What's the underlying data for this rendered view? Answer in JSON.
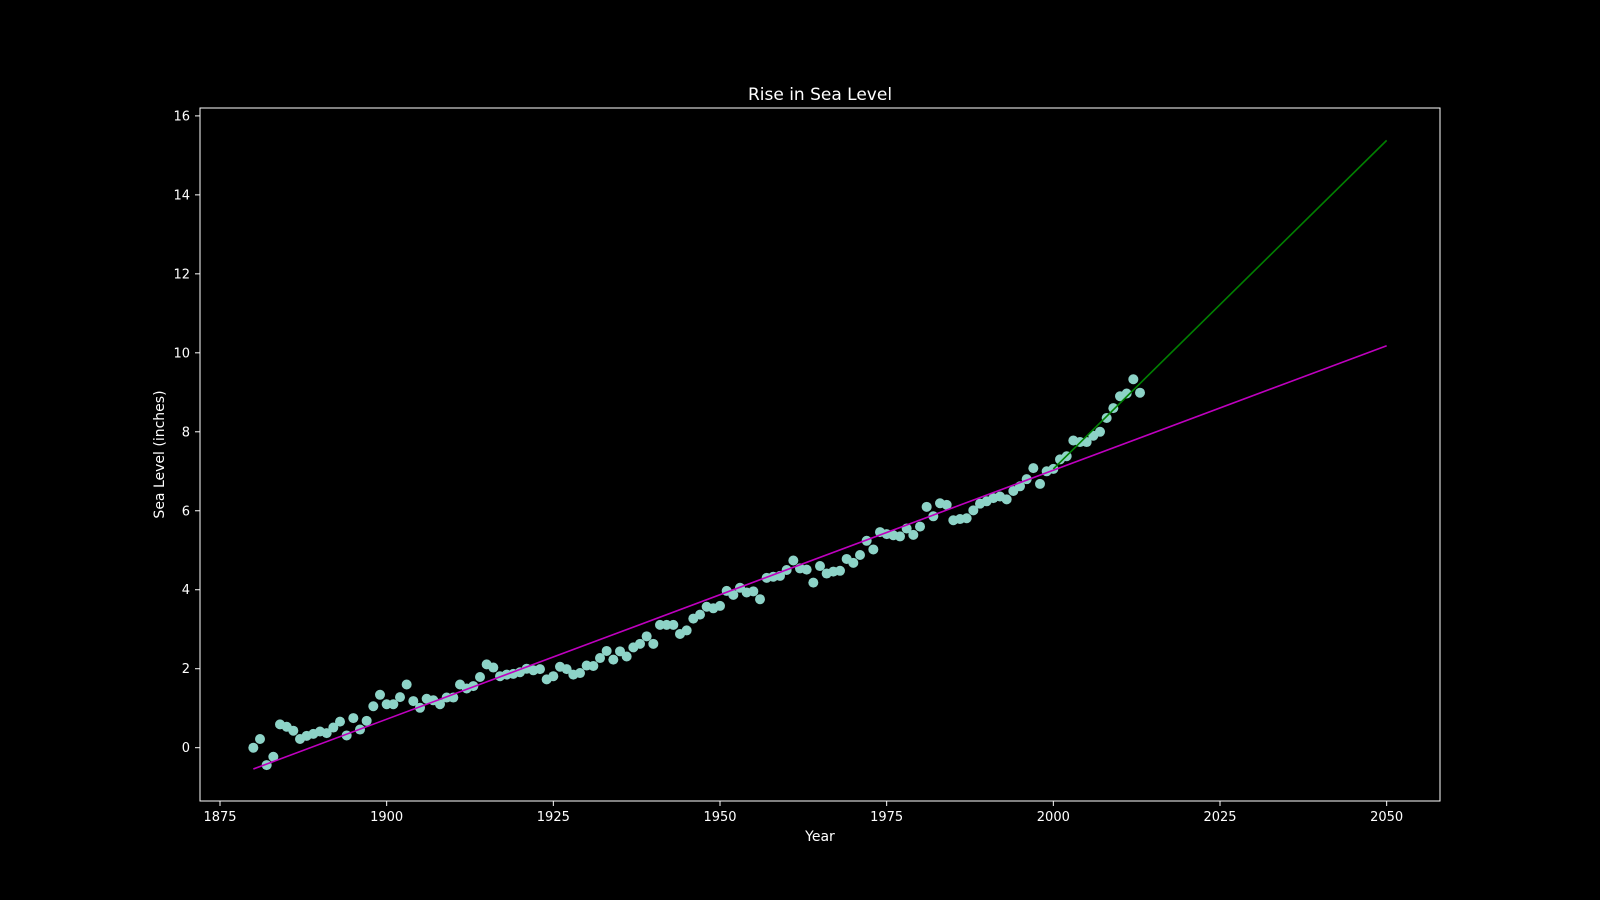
{
  "chart_data": {
    "type": "scatter",
    "title": "Rise in Sea Level",
    "xlabel": "Year",
    "ylabel": "Sea Level (inches)",
    "xlim": [
      1872,
      2058
    ],
    "ylim": [
      -1.35,
      16.2
    ],
    "xticks": [
      1875,
      1900,
      1925,
      1950,
      1975,
      2000,
      2025,
      2050
    ],
    "yticks": [
      0,
      2,
      4,
      6,
      8,
      10,
      12,
      14,
      16
    ],
    "grid": false,
    "legend": "none",
    "colors": {
      "background": "#000000",
      "axes": "#ffffff",
      "points": "#8dd3c7",
      "fit_all": "#bf00bf",
      "fit_recent": "#008000"
    },
    "series": [
      {
        "kind": "scatter",
        "x": [
          1880,
          1881,
          1882,
          1883,
          1884,
          1885,
          1886,
          1887,
          1888,
          1889,
          1890,
          1891,
          1892,
          1893,
          1894,
          1895,
          1896,
          1897,
          1898,
          1899,
          1900,
          1901,
          1902,
          1903,
          1904,
          1905,
          1906,
          1907,
          1908,
          1909,
          1910,
          1911,
          1912,
          1913,
          1914,
          1915,
          1916,
          1917,
          1918,
          1919,
          1920,
          1921,
          1922,
          1923,
          1924,
          1925,
          1926,
          1927,
          1928,
          1929,
          1930,
          1931,
          1932,
          1933,
          1934,
          1935,
          1936,
          1937,
          1938,
          1939,
          1940,
          1941,
          1942,
          1943,
          1944,
          1945,
          1946,
          1947,
          1948,
          1949,
          1950,
          1951,
          1952,
          1953,
          1954,
          1955,
          1956,
          1957,
          1958,
          1959,
          1960,
          1961,
          1962,
          1963,
          1964,
          1965,
          1966,
          1967,
          1968,
          1969,
          1970,
          1971,
          1972,
          1973,
          1974,
          1975,
          1976,
          1977,
          1978,
          1979,
          1980,
          1981,
          1982,
          1983,
          1984,
          1985,
          1986,
          1987,
          1988,
          1989,
          1990,
          1991,
          1992,
          1993,
          1994,
          1995,
          1996,
          1997,
          1998,
          1999,
          2000,
          2001,
          2002,
          2003,
          2004,
          2005,
          2006,
          2007,
          2008,
          2009,
          2010,
          2011,
          2012,
          2013
        ],
        "y": [
          0.0,
          0.22,
          -0.44,
          -0.23,
          0.59,
          0.53,
          0.43,
          0.22,
          0.3,
          0.35,
          0.41,
          0.37,
          0.51,
          0.66,
          0.31,
          0.75,
          0.46,
          0.68,
          1.05,
          1.34,
          1.1,
          1.1,
          1.28,
          1.6,
          1.18,
          1.01,
          1.24,
          1.2,
          1.1,
          1.27,
          1.27,
          1.6,
          1.5,
          1.56,
          1.79,
          2.11,
          2.03,
          1.81,
          1.85,
          1.87,
          1.91,
          2.0,
          1.96,
          1.99,
          1.73,
          1.81,
          2.05,
          1.99,
          1.85,
          1.89,
          2.08,
          2.07,
          2.27,
          2.45,
          2.23,
          2.44,
          2.31,
          2.54,
          2.63,
          2.82,
          2.63,
          3.11,
          3.11,
          3.11,
          2.88,
          2.97,
          3.27,
          3.37,
          3.57,
          3.53,
          3.59,
          3.97,
          3.87,
          4.05,
          3.93,
          3.96,
          3.76,
          4.3,
          4.33,
          4.35,
          4.5,
          4.74,
          4.54,
          4.51,
          4.18,
          4.6,
          4.41,
          4.46,
          4.48,
          4.78,
          4.68,
          4.88,
          5.24,
          5.02,
          5.46,
          5.41,
          5.38,
          5.35,
          5.55,
          5.39,
          5.6,
          6.1,
          5.86,
          6.19,
          6.15,
          5.76,
          5.79,
          5.81,
          6.01,
          6.18,
          6.24,
          6.32,
          6.36,
          6.29,
          6.5,
          6.62,
          6.8,
          7.08,
          6.68,
          7.0,
          7.06,
          7.3,
          7.38,
          7.78,
          7.74,
          7.74,
          7.9,
          8.0,
          8.35,
          8.6,
          8.9,
          8.97,
          9.33,
          8.99
        ]
      },
      {
        "kind": "line",
        "x": [
          1880,
          2050
        ],
        "y": [
          -0.54,
          10.18
        ]
      },
      {
        "kind": "line",
        "x": [
          2000,
          2050
        ],
        "y": [
          7.06,
          15.38
        ]
      }
    ]
  }
}
